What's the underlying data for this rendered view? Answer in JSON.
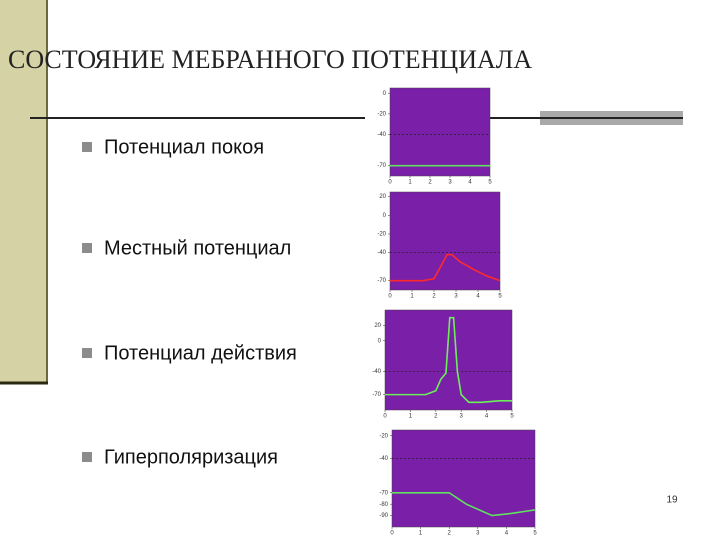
{
  "title": "СОСТОЯНИЕ МЕБРАННОГО ПОТЕНЦИАЛА",
  "bullets": [
    "Потенциал покоя",
    "Местный потенциал",
    "Потенциал действия",
    "Гиперполяризация"
  ],
  "page_number": "19",
  "charts": [
    {
      "type": "line",
      "color": "#5fe35f",
      "x": [
        0,
        5
      ],
      "values": [
        -70,
        -70
      ],
      "xlim": [
        0,
        5
      ],
      "xticks": [
        0,
        1,
        2,
        3,
        4,
        5
      ],
      "ylim": [
        -80,
        5
      ],
      "yticks": [
        0,
        -20,
        -40,
        -70
      ],
      "reference": [
        -40
      ]
    },
    {
      "type": "line",
      "color": "#ff2a2a",
      "x": [
        0,
        1.5,
        2,
        2.3,
        2.6,
        2.8,
        3.2,
        3.8,
        4.4,
        5
      ],
      "values": [
        -70,
        -70,
        -68,
        -55,
        -42,
        -42,
        -50,
        -58,
        -65,
        -70
      ],
      "xlim": [
        0,
        5
      ],
      "xticks": [
        0,
        1,
        2,
        3,
        4,
        5
      ],
      "ylim": [
        -80,
        25
      ],
      "yticks": [
        20,
        0,
        -20,
        -40,
        -70
      ],
      "reference": [
        -40
      ]
    },
    {
      "type": "line",
      "color": "#6cf05a",
      "x": [
        0,
        1.6,
        2,
        2.2,
        2.4,
        2.55,
        2.7,
        2.85,
        3.0,
        3.3,
        3.8,
        4.5,
        5
      ],
      "values": [
        -70,
        -70,
        -65,
        -50,
        -42,
        30,
        30,
        -40,
        -70,
        -80,
        -80,
        -78,
        -78
      ],
      "xlim": [
        0,
        5
      ],
      "xticks": [
        0,
        1,
        2,
        3,
        4,
        5
      ],
      "ylim": [
        -90,
        40
      ],
      "yticks": [
        20,
        0,
        -40,
        -70
      ],
      "reference": [
        -40
      ]
    },
    {
      "type": "line",
      "color": "#5fe35f",
      "x": [
        0,
        2,
        2.6,
        3.5,
        4.2,
        5
      ],
      "values": [
        -70,
        -70,
        -80,
        -90,
        -88,
        -85
      ],
      "xlim": [
        0,
        5
      ],
      "xticks": [
        0,
        1,
        2,
        3,
        4,
        5
      ],
      "ylim": [
        -100,
        -15
      ],
      "yticks": [
        -20,
        -40,
        -70,
        -80,
        -90
      ],
      "reference": [
        -40
      ]
    }
  ]
}
